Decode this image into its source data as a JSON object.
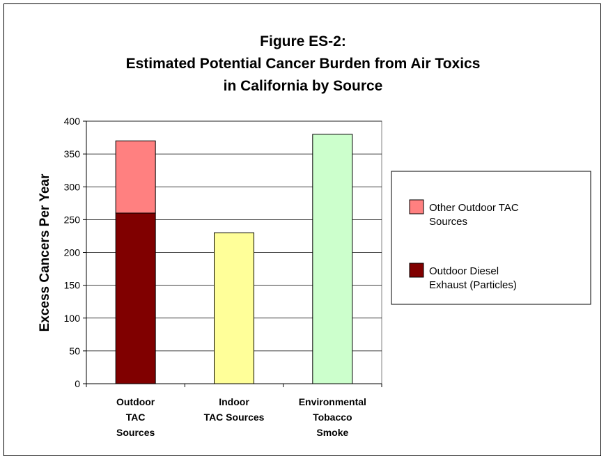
{
  "chart_data": {
    "type": "bar",
    "stacked": true,
    "title": [
      "Figure ES-2:",
      "Estimated Potential Cancer Burden from Air Toxics",
      "in California by Source"
    ],
    "ylabel": "Excess Cancers Per Year",
    "xlabel": "",
    "ylim": [
      0,
      400
    ],
    "yticks": [
      0,
      50,
      100,
      150,
      200,
      250,
      300,
      350,
      400
    ],
    "grid": true,
    "legend_position": "right",
    "categories": [
      [
        "Outdoor",
        "TAC",
        "Sources"
      ],
      [
        "Indoor",
        "TAC Sources"
      ],
      [
        "Environmental",
        "Tobacco",
        "Smoke"
      ]
    ],
    "bars": [
      {
        "segments": [
          {
            "series": "Outdoor Diesel Exhaust (Particles)",
            "value": 260,
            "color": "#800000"
          },
          {
            "series": "Other Outdoor TAC Sources",
            "value": 110,
            "color": "#FF8080"
          }
        ]
      },
      {
        "segments": [
          {
            "series": "Indoor TAC Sources",
            "value": 230,
            "color": "#FFFF99"
          }
        ]
      },
      {
        "segments": [
          {
            "series": "Environmental Tobacco Smoke",
            "value": 380,
            "color": "#CCFFCC"
          }
        ]
      }
    ],
    "legend": [
      {
        "label": [
          "Other Outdoor TAC",
          "Sources"
        ],
        "color": "#FF8080"
      },
      {
        "label": [
          "Outdoor Diesel",
          "Exhaust (Particles)"
        ],
        "color": "#800000"
      }
    ],
    "gridline_color": "#000000",
    "axis_color": "#808080"
  }
}
